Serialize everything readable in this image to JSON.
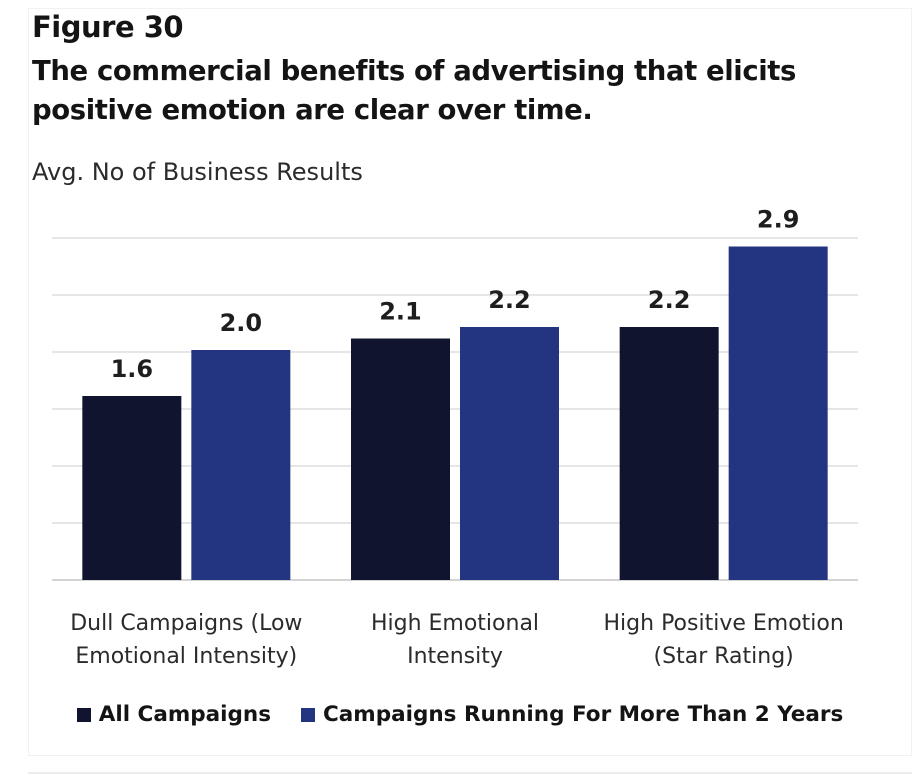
{
  "figure_label": "Figure 30",
  "headline": "The commercial benefits of advertising that elicits positive emotion are clear over time.",
  "chart_data": {
    "type": "bar",
    "title": "The commercial benefits of advertising that elicits positive emotion are clear over time.",
    "xlabel": "",
    "ylabel": "Avg. No of Business Results",
    "ylim": [
      0,
      3.0
    ],
    "grid": true,
    "legend_position": "bottom",
    "categories": [
      [
        "Dull Campaigns (Low",
        "Emotional Intensity)"
      ],
      [
        "High Emotional",
        "Intensity"
      ],
      [
        "High Positive Emotion",
        "(Star Rating)"
      ]
    ],
    "series": [
      {
        "name": "All Campaigns",
        "color": "#11142e",
        "values": [
          1.6,
          2.1,
          2.2
        ],
        "labels": [
          "1.6",
          "2.1",
          "2.2"
        ]
      },
      {
        "name": "Campaigns Running For More Than 2 Years",
        "color": "#233580",
        "values": [
          2.0,
          2.2,
          2.9
        ],
        "labels": [
          "2.0",
          "2.2",
          "2.9"
        ]
      }
    ]
  }
}
